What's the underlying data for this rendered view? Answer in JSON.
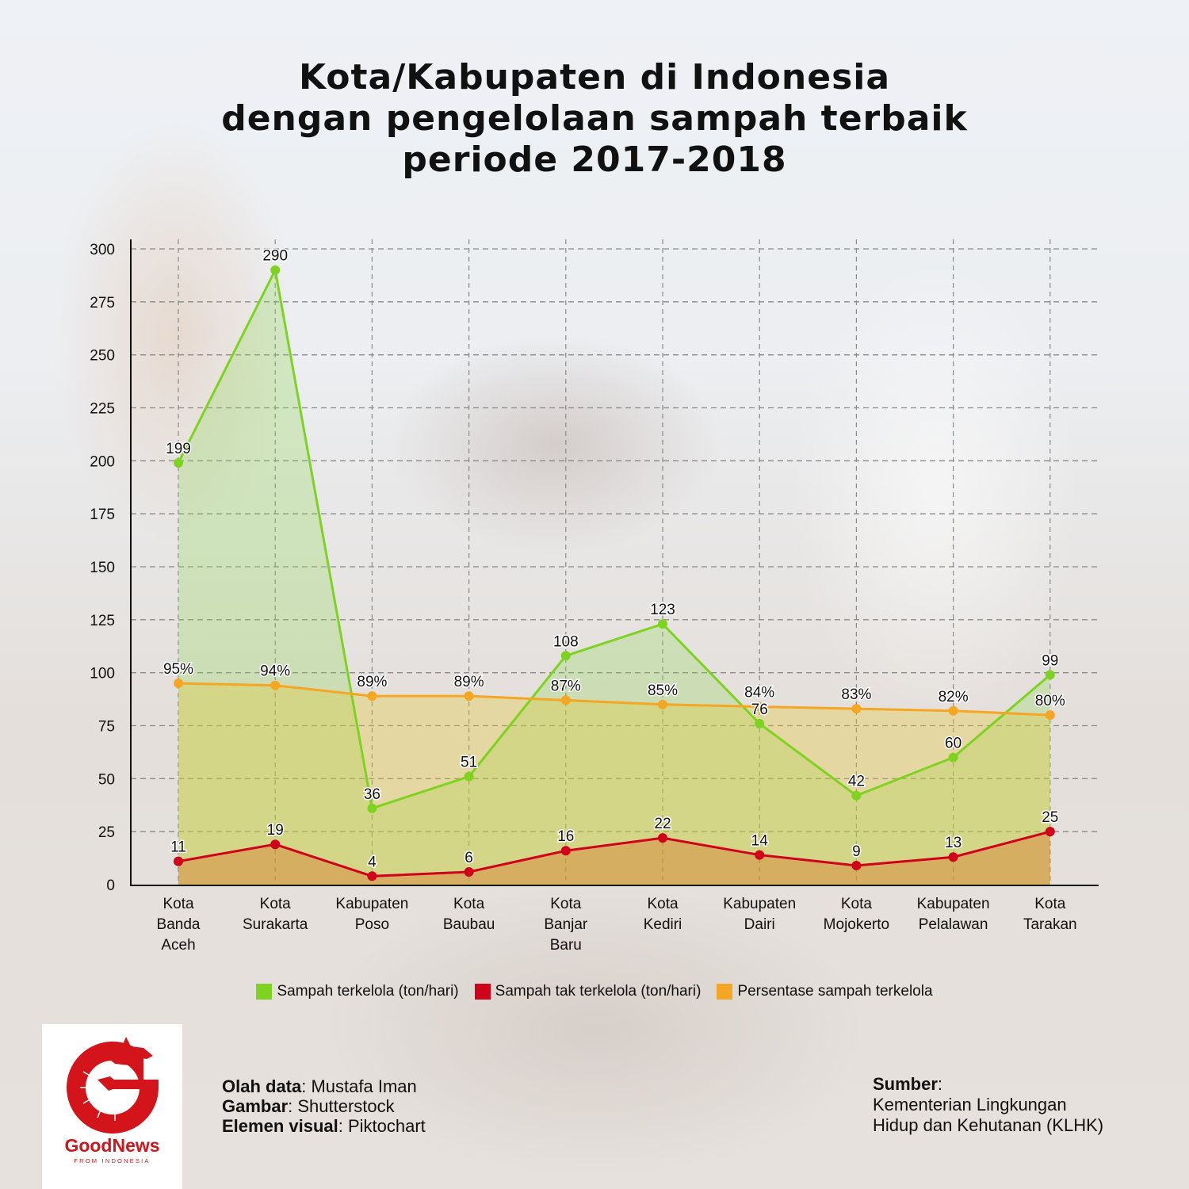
{
  "title": {
    "line1": "Kota/Kabupaten di Indonesia",
    "line2": "dengan pengelolaan sampah terbaik",
    "line3": "periode 2017-2018"
  },
  "y_axis": {
    "ticks": [
      "0",
      "25",
      "50",
      "75",
      "100",
      "125",
      "150",
      "175",
      "200",
      "225",
      "250",
      "275",
      "300"
    ]
  },
  "x_axis": {
    "categories": [
      [
        "Kota",
        "Banda",
        "Aceh"
      ],
      [
        "Kota",
        "Surakarta"
      ],
      [
        "Kabupaten",
        "Poso"
      ],
      [
        "Kota",
        "Baubau"
      ],
      [
        "Kota",
        "Banjar",
        "Baru"
      ],
      [
        "Kota",
        "Kediri"
      ],
      [
        "Kabupaten",
        "Dairi"
      ],
      [
        "Kota",
        "Mojokerto"
      ],
      [
        "Kabupaten",
        "Pelalawan"
      ],
      [
        "Kota",
        "Tarakan"
      ]
    ]
  },
  "legend": {
    "items": [
      {
        "label": "Sampah terkelola (ton/hari)",
        "color": "#7ed321"
      },
      {
        "label": "Sampah tak terkelola (ton/hari)",
        "color": "#d0021b"
      },
      {
        "label": "Persentase sampah terkelola",
        "color": "#f5a623"
      }
    ]
  },
  "chart_data": {
    "type": "area",
    "title": "Kota/Kabupaten di Indonesia dengan pengelolaan sampah terbaik periode 2017-2018",
    "categories": [
      "Kota Banda Aceh",
      "Kota Surakarta",
      "Kabupaten Poso",
      "Kota Baubau",
      "Kota Banjar Baru",
      "Kota Kediri",
      "Kabupaten Dairi",
      "Kota Mojokerto",
      "Kabupaten Pelalawan",
      "Kota Tarakan"
    ],
    "series": [
      {
        "name": "Sampah terkelola (ton/hari)",
        "color": "#7ed321",
        "values": [
          199,
          290,
          36,
          51,
          108,
          123,
          76,
          42,
          60,
          99
        ],
        "labels": [
          "199",
          "290",
          "36",
          "51",
          "108",
          "123",
          "76",
          "42",
          "60",
          "99"
        ]
      },
      {
        "name": "Sampah tak terkelola (ton/hari)",
        "color": "#d0021b",
        "values": [
          11,
          19,
          4,
          6,
          16,
          22,
          14,
          9,
          13,
          25
        ],
        "labels": [
          "11",
          "19",
          "4",
          "6",
          "16",
          "22",
          "14",
          "9",
          "13",
          "25"
        ]
      },
      {
        "name": "Persentase sampah terkelola",
        "color": "#f5a623",
        "values": [
          95,
          94,
          89,
          89,
          87,
          85,
          84,
          83,
          82,
          80
        ],
        "labels": [
          "95%",
          "94%",
          "89%",
          "89%",
          "87%",
          "85%",
          "84%",
          "83%",
          "82%",
          "80%"
        ]
      }
    ],
    "xlabel": "",
    "ylabel": "",
    "ylim": [
      0,
      300
    ],
    "yticks": [
      0,
      25,
      50,
      75,
      100,
      125,
      150,
      175,
      200,
      225,
      250,
      275,
      300
    ],
    "grid": true,
    "legend_position": "bottom"
  },
  "logo": {
    "name": "GoodNews",
    "tagline": "FROM INDONESIA",
    "color": "#d3141b"
  },
  "credits": {
    "items": [
      {
        "key": "Olah data",
        "value": ": Mustafa Iman"
      },
      {
        "key": "Gambar",
        "value": ": Shutterstock"
      },
      {
        "key": "Elemen visual",
        "value": ": Piktochart"
      }
    ]
  },
  "source": {
    "key": "Sumber",
    "colon": ":",
    "line1": "Kementerian Lingkungan",
    "line2": "Hidup dan Kehutanan (KLHK)"
  }
}
